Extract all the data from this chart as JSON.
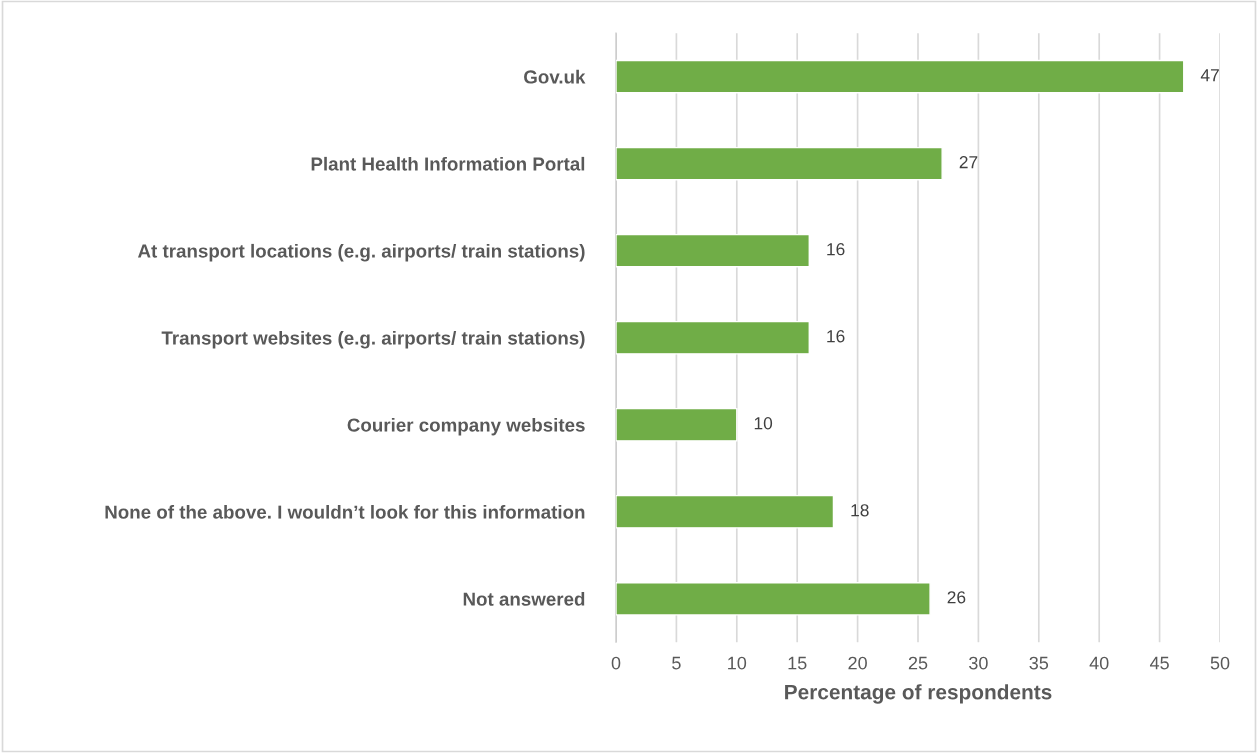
{
  "chart_data": {
    "type": "bar",
    "orientation": "horizontal",
    "categories": [
      "Gov.uk",
      "Plant Health Information Portal",
      "At transport locations (e.g. airports/ train stations)",
      "Transport websites (e.g. airports/ train stations)",
      "Courier company websites",
      "None of the above. I wouldn’t look for this information",
      "Not answered"
    ],
    "values": [
      47,
      27,
      16,
      16,
      10,
      18,
      26
    ],
    "color": "#70ad47",
    "xlabel": "Percentage of respondents",
    "xlim": [
      0,
      50
    ],
    "xticks": [
      0,
      5,
      10,
      15,
      20,
      25,
      30,
      35,
      40,
      45,
      50
    ],
    "grid": "x",
    "data_labels": true
  }
}
